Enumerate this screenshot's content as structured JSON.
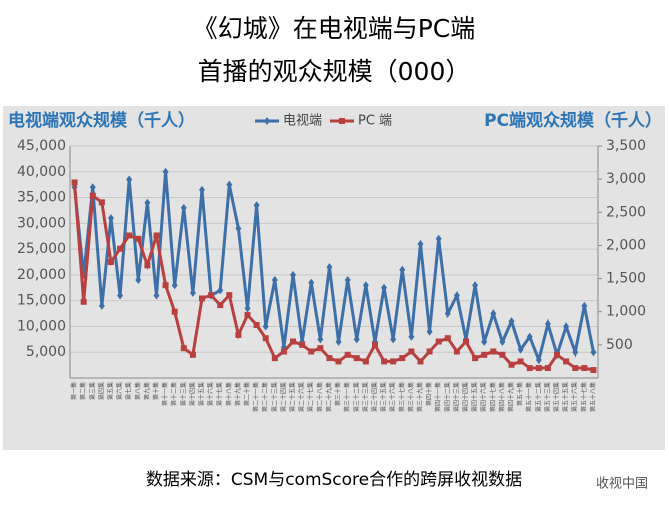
{
  "chart_data": {
    "type": "line",
    "title": "《幻城》在电视端与PC端",
    "subtitle": "首播的观众规模（000）",
    "y_label": "电视端观众规模（千人）",
    "y2_label": "PC端观众规模（千人）",
    "source": "数据来源：CSM与comScore合作的跨屏收视数据",
    "watermark": "收视中国",
    "categories": [
      "第一集",
      "第二集",
      "第三集",
      "第四集",
      "第五集",
      "第六集",
      "第七集",
      "第八集",
      "第九集",
      "第十集",
      "第十一集",
      "第十二集",
      "第十三集",
      "第十四集",
      "第十五集",
      "第十六集",
      "第十七集",
      "第十八集",
      "第十九集",
      "第二十集",
      "第二十一集",
      "第二十二集",
      "第二十三集",
      "第二十四集",
      "第二十五集",
      "第二十六集",
      "第二十七集",
      "第二十八集",
      "第二十九集",
      "第三十集",
      "第三十一集",
      "第三十二集",
      "第三十三集",
      "第三十四集",
      "第三十五集",
      "第三十六集",
      "第三十七集",
      "第三十八集",
      "第三十九集",
      "第四十集",
      "第四十一集",
      "第四十二集",
      "第四十三集",
      "第四十四集",
      "第四十五集",
      "第四十六集",
      "第四十七集",
      "第四十八集",
      "第四十九集",
      "第五十集",
      "第五十一集",
      "第五十二集",
      "第五十三集",
      "第五十四集",
      "第五十五集",
      "第五十六集",
      "第五十七集",
      "第五十八集"
    ],
    "series": [
      {
        "name": "电视端",
        "color": "#3d6fa8",
        "values": [
          37000,
          20000,
          37000,
          14000,
          31000,
          16000,
          38500,
          19000,
          34000,
          16000,
          40000,
          18000,
          33000,
          16500,
          36500,
          16000,
          17000,
          37500,
          29000,
          13500,
          33500,
          10000,
          19000,
          6000,
          20000,
          7000,
          18500,
          7500,
          21500,
          7000,
          19000,
          7500,
          18000,
          7000,
          17500,
          7500,
          21000,
          8000,
          26000,
          9000,
          27000,
          12500,
          16000,
          7500,
          18000,
          7000,
          12500,
          7000,
          11000,
          5500,
          8000,
          3500,
          10500,
          4500,
          10000,
          5000,
          14000,
          5000
        ]
      },
      {
        "name": "PC 端",
        "color": "#b8403e",
        "axis": "y2",
        "values": [
          2950,
          1150,
          2750,
          2650,
          1750,
          1950,
          2150,
          2100,
          1700,
          2150,
          1400,
          1000,
          450,
          350,
          1200,
          1250,
          1100,
          1250,
          650,
          950,
          800,
          600,
          300,
          400,
          550,
          500,
          400,
          450,
          300,
          250,
          350,
          300,
          250,
          500,
          250,
          250,
          300,
          400,
          250,
          400,
          550,
          600,
          400,
          550,
          300,
          350,
          400,
          350,
          200,
          250,
          150,
          150,
          150,
          350,
          250,
          150,
          150,
          120
        ]
      }
    ],
    "ylim": [
      0,
      45000
    ],
    "yticks": [
      {
        "value": 5000,
        "label": "5,000"
      },
      {
        "value": 10000,
        "label": "10,000"
      },
      {
        "value": 15000,
        "label": "15,000"
      },
      {
        "value": 20000,
        "label": "20,000"
      },
      {
        "value": 25000,
        "label": "25,000"
      },
      {
        "value": 30000,
        "label": "30,000"
      },
      {
        "value": 35000,
        "label": "35,000"
      },
      {
        "value": 40000,
        "label": "40,000"
      },
      {
        "value": 45000,
        "label": "45,000"
      }
    ],
    "y2lim": [
      0,
      3500
    ],
    "y2ticks": [
      500,
      {
        "value": 1000,
        "label": "1,000"
      },
      {
        "value": 1500,
        "label": "1,500"
      },
      {
        "value": 2000,
        "label": "2,000"
      },
      {
        "value": 2500,
        "label": "2,500"
      },
      {
        "value": 3000,
        "label": "3,000"
      },
      {
        "value": 3500,
        "label": "3,500"
      }
    ],
    "grid": true
  }
}
